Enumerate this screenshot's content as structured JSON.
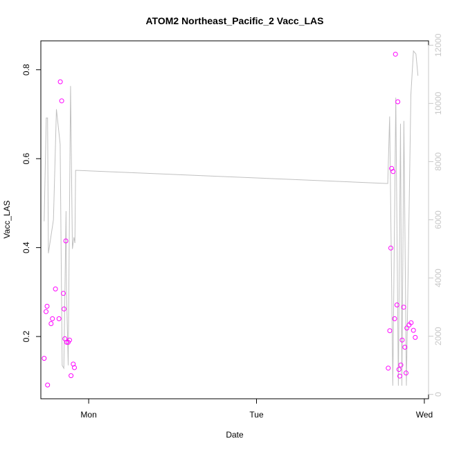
{
  "chart_data": {
    "type": "scatter",
    "title": "ATOM2 Northeast_Pacific_2 Vacc_LAS",
    "xlabel": "Date",
    "ylabel": "Vacc_LAS",
    "x_ticks": [
      {
        "label": "Mon",
        "day": 1.0
      },
      {
        "label": "Tue",
        "day": 2.0
      },
      {
        "label": "Wed",
        "day": 3.0
      }
    ],
    "xlim_days": [
      0.715,
      3.025
    ],
    "ylim": [
      0.06,
      0.865
    ],
    "y_ticks": [
      0.2,
      0.4,
      0.6,
      0.8
    ],
    "y2lim": [
      -150,
      12150
    ],
    "y2_ticks": [
      0,
      2000,
      4000,
      6000,
      8000,
      10000,
      12000
    ],
    "grid": false,
    "colors": {
      "points": "#ff00ff",
      "line": "#c0c0c0",
      "right_axis": "#c8c8c8"
    },
    "series": [
      {
        "type": "scatter",
        "axis": "left",
        "points": [
          [
            0.735,
            0.151
          ],
          [
            0.746,
            0.256
          ],
          [
            0.752,
            0.268
          ],
          [
            0.755,
            0.091
          ],
          [
            0.776,
            0.229
          ],
          [
            0.784,
            0.24
          ],
          [
            0.802,
            0.307
          ],
          [
            0.823,
            0.24
          ],
          [
            0.831,
            0.773
          ],
          [
            0.839,
            0.73
          ],
          [
            0.849,
            0.297
          ],
          [
            0.853,
            0.262
          ],
          [
            0.858,
            0.195
          ],
          [
            0.864,
            0.415
          ],
          [
            0.869,
            0.187
          ],
          [
            0.878,
            0.187
          ],
          [
            0.886,
            0.192
          ],
          [
            0.895,
            0.112
          ],
          [
            0.908,
            0.138
          ],
          [
            0.915,
            0.13
          ],
          [
            2.785,
            0.129
          ],
          [
            2.794,
            0.213
          ],
          [
            2.8,
            0.399
          ],
          [
            2.805,
            0.578
          ],
          [
            2.814,
            0.571
          ],
          [
            2.823,
            0.24
          ],
          [
            2.828,
            0.835
          ],
          [
            2.837,
            0.271
          ],
          [
            2.842,
            0.728
          ],
          [
            2.849,
            0.126
          ],
          [
            2.854,
            0.111
          ],
          [
            2.86,
            0.136
          ],
          [
            2.868,
            0.192
          ],
          [
            2.877,
            0.266
          ],
          [
            2.884,
            0.176
          ],
          [
            2.891,
            0.118
          ],
          [
            2.896,
            0.219
          ],
          [
            2.909,
            0.226
          ],
          [
            2.921,
            0.231
          ],
          [
            2.935,
            0.214
          ],
          [
            2.946,
            0.198
          ]
        ]
      },
      {
        "type": "line",
        "axis": "right",
        "points": [
          [
            0.735,
            5950
          ],
          [
            0.747,
            9500
          ],
          [
            0.755,
            9500
          ],
          [
            0.76,
            4850
          ],
          [
            0.79,
            6000
          ],
          [
            0.808,
            9800
          ],
          [
            0.83,
            8600
          ],
          [
            0.842,
            1000
          ],
          [
            0.852,
            900
          ],
          [
            0.865,
            6300
          ],
          [
            0.868,
            3500
          ],
          [
            0.878,
            1000
          ],
          [
            0.892,
            10600
          ],
          [
            0.903,
            5000
          ],
          [
            0.912,
            5400
          ],
          [
            0.918,
            5200
          ],
          [
            0.922,
            7700
          ],
          [
            2.772,
            7250
          ],
          [
            2.782,
            7250
          ],
          [
            2.793,
            9550
          ],
          [
            2.812,
            300
          ],
          [
            2.83,
            10200
          ],
          [
            2.845,
            300
          ],
          [
            2.858,
            9300
          ],
          [
            2.866,
            300
          ],
          [
            2.878,
            9400
          ],
          [
            2.893,
            300
          ],
          [
            2.92,
            10300
          ],
          [
            2.935,
            11800
          ],
          [
            2.95,
            11700
          ],
          [
            2.962,
            10950
          ]
        ]
      }
    ]
  }
}
